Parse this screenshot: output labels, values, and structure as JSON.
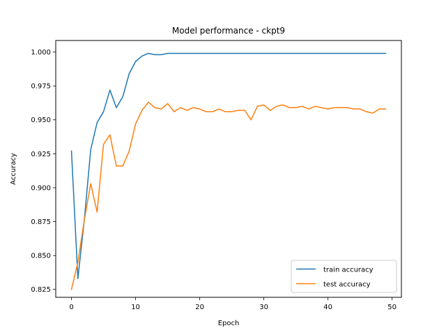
{
  "chart_data": {
    "type": "line",
    "title": "Model performance - ckpt9",
    "xlabel": "Epoch",
    "ylabel": "Accuracy",
    "xlim": [
      -2.45,
      51.45
    ],
    "ylim": [
      0.8192,
      1.0085
    ],
    "xticks": [
      0,
      10,
      20,
      30,
      40,
      50
    ],
    "xtick_labels": [
      "0",
      "10",
      "20",
      "30",
      "40",
      "50"
    ],
    "yticks": [
      0.825,
      0.85,
      0.875,
      0.9,
      0.925,
      0.95,
      0.975,
      1.0
    ],
    "ytick_labels": [
      "0.825",
      "0.850",
      "0.875",
      "0.900",
      "0.925",
      "0.950",
      "0.975",
      "1.000"
    ],
    "grid": false,
    "legend_position": "lower-right",
    "x": [
      0,
      1,
      2,
      3,
      4,
      5,
      6,
      7,
      8,
      9,
      10,
      11,
      12,
      13,
      14,
      15,
      16,
      17,
      18,
      19,
      20,
      21,
      22,
      23,
      24,
      25,
      26,
      27,
      28,
      29,
      30,
      31,
      32,
      33,
      34,
      35,
      36,
      37,
      38,
      39,
      40,
      41,
      42,
      43,
      44,
      45,
      46,
      47,
      48,
      49
    ],
    "series": [
      {
        "name": "train accuracy",
        "color": "#1f77b4",
        "values": [
          0.927,
          0.833,
          0.876,
          0.928,
          0.948,
          0.956,
          0.972,
          0.959,
          0.967,
          0.984,
          0.993,
          0.997,
          0.999,
          0.998,
          0.998,
          0.999,
          0.999,
          0.999,
          0.999,
          0.999,
          0.999,
          0.999,
          0.999,
          0.999,
          0.999,
          0.999,
          0.999,
          0.999,
          0.999,
          0.999,
          0.999,
          0.999,
          0.999,
          0.999,
          0.999,
          0.999,
          0.999,
          0.999,
          0.999,
          0.999,
          0.999,
          0.999,
          0.999,
          0.999,
          0.999,
          0.999,
          0.999,
          0.999,
          0.999,
          0.999
        ]
      },
      {
        "name": "test accuracy",
        "color": "#ff7f0e",
        "values": [
          0.825,
          0.845,
          0.876,
          0.903,
          0.882,
          0.932,
          0.939,
          0.916,
          0.916,
          0.927,
          0.947,
          0.957,
          0.963,
          0.959,
          0.958,
          0.962,
          0.956,
          0.959,
          0.957,
          0.959,
          0.958,
          0.956,
          0.956,
          0.958,
          0.956,
          0.956,
          0.957,
          0.957,
          0.95,
          0.96,
          0.961,
          0.957,
          0.96,
          0.961,
          0.959,
          0.959,
          0.96,
          0.958,
          0.96,
          0.959,
          0.958,
          0.959,
          0.959,
          0.959,
          0.958,
          0.958,
          0.956,
          0.955,
          0.958,
          0.958
        ]
      }
    ]
  }
}
